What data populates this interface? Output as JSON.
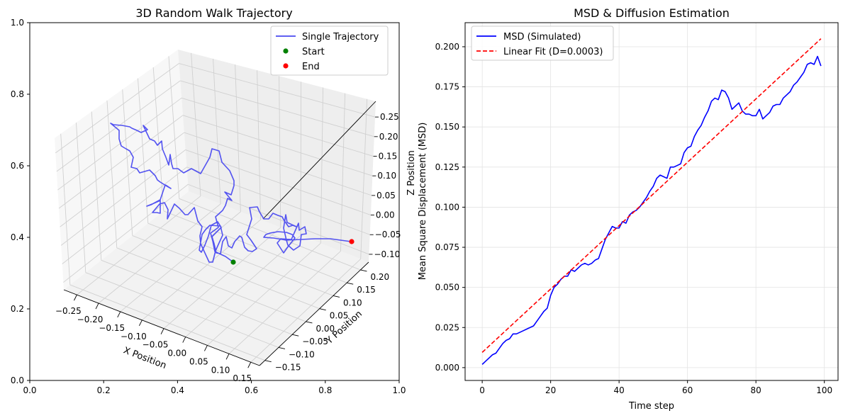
{
  "chart_data": [
    {
      "type": "line",
      "projection": "3d",
      "title": "3D Random Walk Trajectory",
      "xlabel": "X Position",
      "ylabel": "Y Position",
      "zlabel": "Z Position",
      "xlim": [
        -0.28,
        0.17
      ],
      "ylim": [
        -0.17,
        0.23
      ],
      "zlim": [
        -0.12,
        0.29
      ],
      "xticks": [
        "−0.25",
        "−0.20",
        "−0.15",
        "−0.10",
        "−0.05",
        "0.00",
        "0.05",
        "0.10",
        "0.15"
      ],
      "yticks": [
        "−0.15",
        "−0.10",
        "−0.05",
        "0.00",
        "0.05",
        "0.10",
        "0.15",
        "0.20"
      ],
      "zticks": [
        "−0.10",
        "−0.05",
        "0.00",
        "0.05",
        "0.10",
        "0.15",
        "0.20",
        "0.25"
      ],
      "background_axis_ticks": [
        "0.0",
        "0.2",
        "0.4",
        "0.6",
        "0.8",
        "1.0"
      ],
      "series": [
        {
          "name": "Single Trajectory",
          "color": "#4a4af0",
          "style": "line"
        },
        {
          "name": "Start",
          "color": "#008000",
          "style": "point"
        },
        {
          "name": "End",
          "color": "#ff0000",
          "style": "point"
        }
      ],
      "start_point": [
        0.0,
        0.0,
        0.0
      ],
      "end_point": [
        0.15,
        0.18,
        0.01
      ],
      "legend": "top-right",
      "grid": true
    },
    {
      "type": "line",
      "title": "MSD & Diffusion Estimation",
      "xlabel": "Time step",
      "ylabel": "Mean Square Displacement (MSD)",
      "xlim": [
        -5,
        104
      ],
      "ylim": [
        -0.008,
        0.215
      ],
      "xticks": [
        "0",
        "20",
        "40",
        "60",
        "80",
        "100"
      ],
      "yticks": [
        "0.000",
        "0.025",
        "0.050",
        "0.075",
        "0.100",
        "0.125",
        "0.150",
        "0.175",
        "0.200"
      ],
      "grid": true,
      "legend": "top-left",
      "series": [
        {
          "name": "MSD (Simulated)",
          "color": "#0000ff",
          "style": "solid",
          "x": [
            0,
            1,
            2,
            3,
            4,
            5,
            6,
            7,
            8,
            9,
            10,
            11,
            12,
            13,
            14,
            15,
            16,
            17,
            18,
            19,
            20,
            21,
            22,
            23,
            24,
            25,
            26,
            27,
            28,
            29,
            30,
            31,
            32,
            33,
            34,
            35,
            36,
            37,
            38,
            39,
            40,
            41,
            42,
            43,
            44,
            45,
            46,
            47,
            48,
            49,
            50,
            51,
            52,
            53,
            54,
            55,
            56,
            57,
            58,
            59,
            60,
            61,
            62,
            63,
            64,
            65,
            66,
            67,
            68,
            69,
            70,
            71,
            72,
            73,
            74,
            75,
            76,
            77,
            78,
            79,
            80,
            81,
            82,
            83,
            84,
            85,
            86,
            87,
            88,
            89,
            90,
            91,
            92,
            93,
            94,
            95,
            96,
            97,
            98,
            99
          ],
          "y": [
            0.002,
            0.004,
            0.006,
            0.008,
            0.009,
            0.012,
            0.015,
            0.017,
            0.018,
            0.021,
            0.021,
            0.022,
            0.023,
            0.024,
            0.025,
            0.026,
            0.029,
            0.032,
            0.035,
            0.037,
            0.045,
            0.05,
            0.052,
            0.055,
            0.057,
            0.057,
            0.061,
            0.06,
            0.062,
            0.064,
            0.065,
            0.064,
            0.065,
            0.067,
            0.068,
            0.074,
            0.08,
            0.084,
            0.088,
            0.087,
            0.087,
            0.091,
            0.09,
            0.095,
            0.097,
            0.098,
            0.1,
            0.103,
            0.106,
            0.11,
            0.113,
            0.118,
            0.12,
            0.119,
            0.118,
            0.125,
            0.125,
            0.126,
            0.127,
            0.134,
            0.137,
            0.138,
            0.144,
            0.148,
            0.151,
            0.156,
            0.16,
            0.166,
            0.168,
            0.167,
            0.173,
            0.172,
            0.168,
            0.161,
            0.163,
            0.165,
            0.16,
            0.158,
            0.158,
            0.157,
            0.157,
            0.161,
            0.155,
            0.157,
            0.159,
            0.163,
            0.164,
            0.164,
            0.168,
            0.17,
            0.172,
            0.176,
            0.178,
            0.181,
            0.184,
            0.189,
            0.19,
            0.189,
            0.194,
            0.188
          ]
        },
        {
          "name": "Linear Fit (D=0.0003)",
          "color": "#ff0000",
          "style": "dashed",
          "x": [
            0,
            99
          ],
          "y": [
            0.0095,
            0.205
          ]
        }
      ]
    }
  ]
}
